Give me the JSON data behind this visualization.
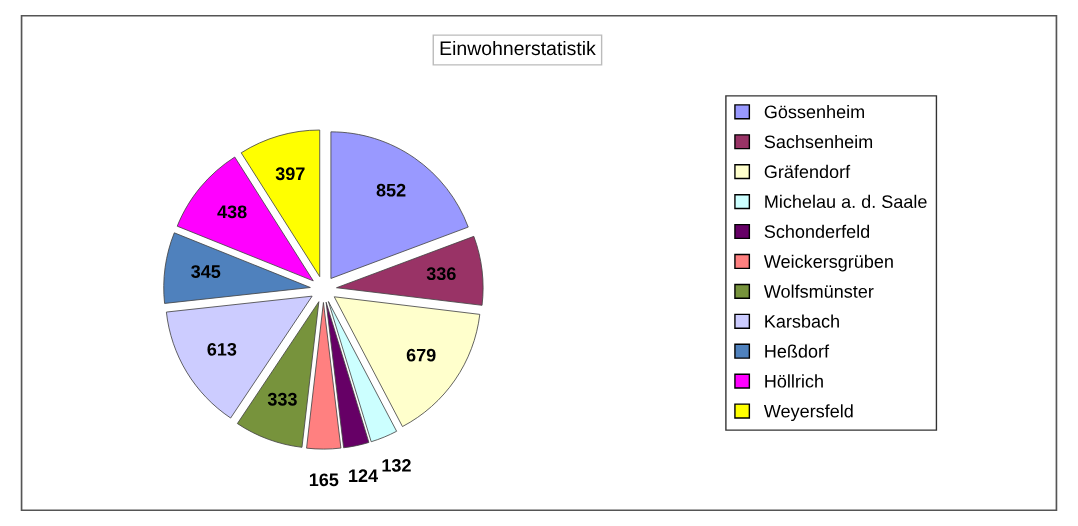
{
  "chart_data": {
    "type": "pie",
    "title": "Einwohnerstatistik",
    "categories": [
      "Gössenheim",
      "Sachsenheim",
      "Gräfendorf",
      "Michelau a. d. Saale",
      "Schonderfeld",
      "Weickersgrüben",
      "Wolfsmünster",
      "Karsbach",
      "Heßdorf",
      "Höllrich",
      "Weyersfeld"
    ],
    "values": [
      852,
      336,
      679,
      132,
      124,
      165,
      333,
      613,
      345,
      438,
      397
    ],
    "colors": [
      "#9999ff",
      "#993366",
      "#ffffcc",
      "#ccffff",
      "#660066",
      "#ff8080",
      "#77933c",
      "#ccccff",
      "#4f81bd",
      "#ff00ff",
      "#ffff00"
    ],
    "data_labels": true,
    "legend": "right"
  }
}
